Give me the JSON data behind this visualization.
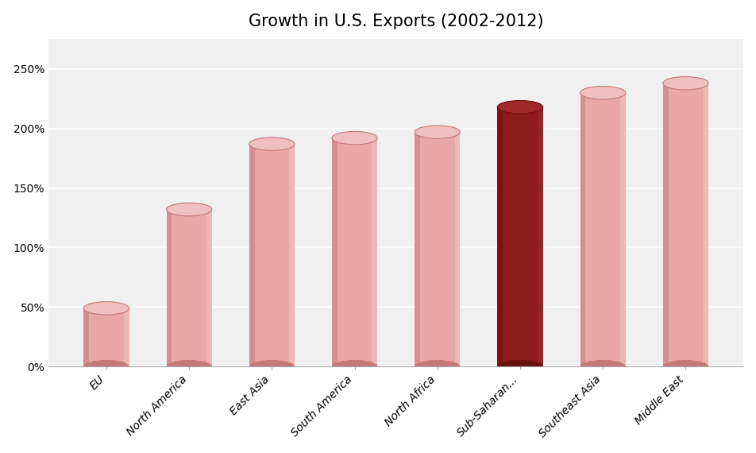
{
  "title": "Growth in U.S. Exports (2002-2012)",
  "categories": [
    "EU",
    "North America",
    "East Asia",
    "South America",
    "North Africa",
    "Sub-Saharan...",
    "Southeast Asia",
    "Middle East"
  ],
  "values": [
    0.49,
    1.32,
    1.87,
    1.92,
    1.97,
    2.18,
    2.3,
    2.38
  ],
  "bar_colors_main": [
    "#e8a8a8",
    "#e8a8a8",
    "#e8a8a8",
    "#e8a8a8",
    "#e8a8a8",
    "#8b1a1a",
    "#e8a8a8",
    "#e8a8a8"
  ],
  "bar_colors_light": [
    "#f5d0d0",
    "#f5d0d0",
    "#f5d0d0",
    "#f5d0d0",
    "#f5d0d0",
    "#b03030",
    "#f5d0d0",
    "#f5d0d0"
  ],
  "bar_colors_dark": [
    "#c47878",
    "#c47878",
    "#c47878",
    "#c47878",
    "#c47878",
    "#6b1010",
    "#c47878",
    "#c47878"
  ],
  "bar_top_colors": [
    "#f0c0c0",
    "#f0c0c0",
    "#f0c0c0",
    "#f0c0c0",
    "#f0c0c0",
    "#a02828",
    "#f0c0c0",
    "#f0c0c0"
  ],
  "ylim": [
    0,
    2.75
  ],
  "yticks": [
    0.0,
    0.5,
    1.0,
    1.5,
    2.0,
    2.5
  ],
  "ytick_labels": [
    "0%",
    "50%",
    "100%",
    "150%",
    "200%",
    "250%"
  ],
  "background_color": "#ffffff",
  "plot_bg_color": "#f0f0f0",
  "grid_color": "#ffffff",
  "title_fontsize": 15,
  "tick_fontsize": 10,
  "figsize": [
    9.53,
    5.7
  ],
  "dpi": 100,
  "bar_width": 0.55
}
